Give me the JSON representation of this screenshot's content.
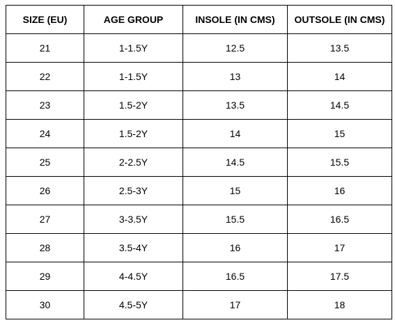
{
  "table": {
    "headers": [
      "SIZE (EU)",
      "AGE GROUP",
      "INSOLE (IN CMS)",
      "OUTSOLE (IN CMS)"
    ],
    "rows": [
      [
        "21",
        "1-1.5Y",
        "12.5",
        "13.5"
      ],
      [
        "22",
        "1-1.5Y",
        "13",
        "14"
      ],
      [
        "23",
        "1.5-2Y",
        "13.5",
        "14.5"
      ],
      [
        "24",
        "1.5-2Y",
        "14",
        "15"
      ],
      [
        "25",
        "2-2.5Y",
        "14.5",
        "15.5"
      ],
      [
        "26",
        "2.5-3Y",
        "15",
        "16"
      ],
      [
        "27",
        "3-3.5Y",
        "15.5",
        "16.5"
      ],
      [
        "28",
        "3.5-4Y",
        "16",
        "17"
      ],
      [
        "29",
        "4-4.5Y",
        "16.5",
        "17.5"
      ],
      [
        "30",
        "4.5-5Y",
        "17",
        "18"
      ]
    ]
  }
}
